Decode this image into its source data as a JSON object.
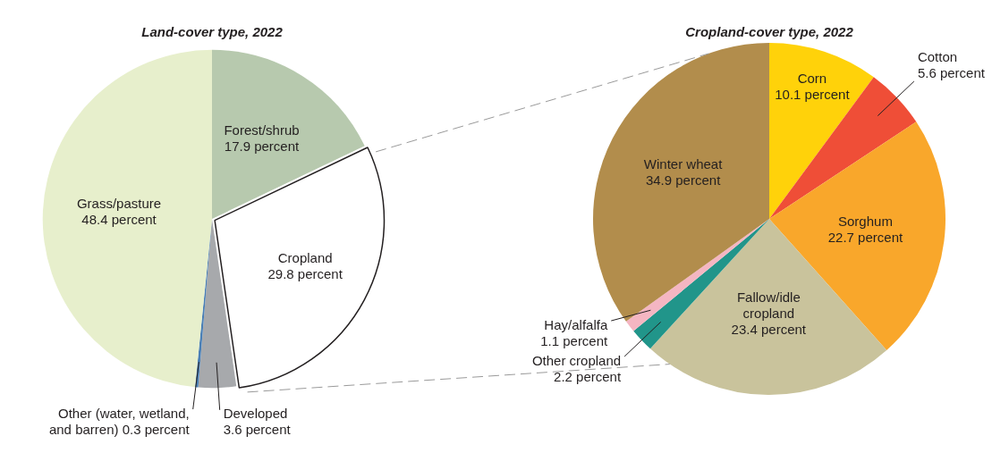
{
  "chart_data": [
    {
      "type": "pie",
      "title": "Land-cover type, 2022",
      "categories": [
        "Forest/shrub",
        "Cropland",
        "Developed",
        "Other (water, wetland, and barren)",
        "Grass/pasture"
      ],
      "values": [
        17.9,
        29.8,
        3.6,
        0.3,
        48.4
      ],
      "colors": [
        "#b7c9ae",
        "#ffffff",
        "#a7a9ac",
        "#4a7fb5",
        "#e7efcc"
      ],
      "value_labels": [
        "17.9 percent",
        "29.8 percent",
        "3.6 percent",
        "0.3 percent",
        "48.4 percent"
      ]
    },
    {
      "type": "pie",
      "title": "Cropland-cover type, 2022",
      "categories": [
        "Corn",
        "Cotton",
        "Sorghum",
        "Fallow/idle cropland",
        "Other cropland",
        "Hay/alfalfa",
        "Winter wheat"
      ],
      "values": [
        10.1,
        5.6,
        22.7,
        23.4,
        2.2,
        1.1,
        34.9
      ],
      "colors": [
        "#ffd20a",
        "#ef4e37",
        "#f9a72b",
        "#c9c39c",
        "#21958a",
        "#f4b6c2",
        "#b28d4c"
      ],
      "value_labels": [
        "10.1 percent",
        "5.6 percent",
        "22.7 percent",
        "23.4 percent",
        "2.2 percent",
        "1.1 percent",
        "34.9 percent"
      ]
    }
  ]
}
